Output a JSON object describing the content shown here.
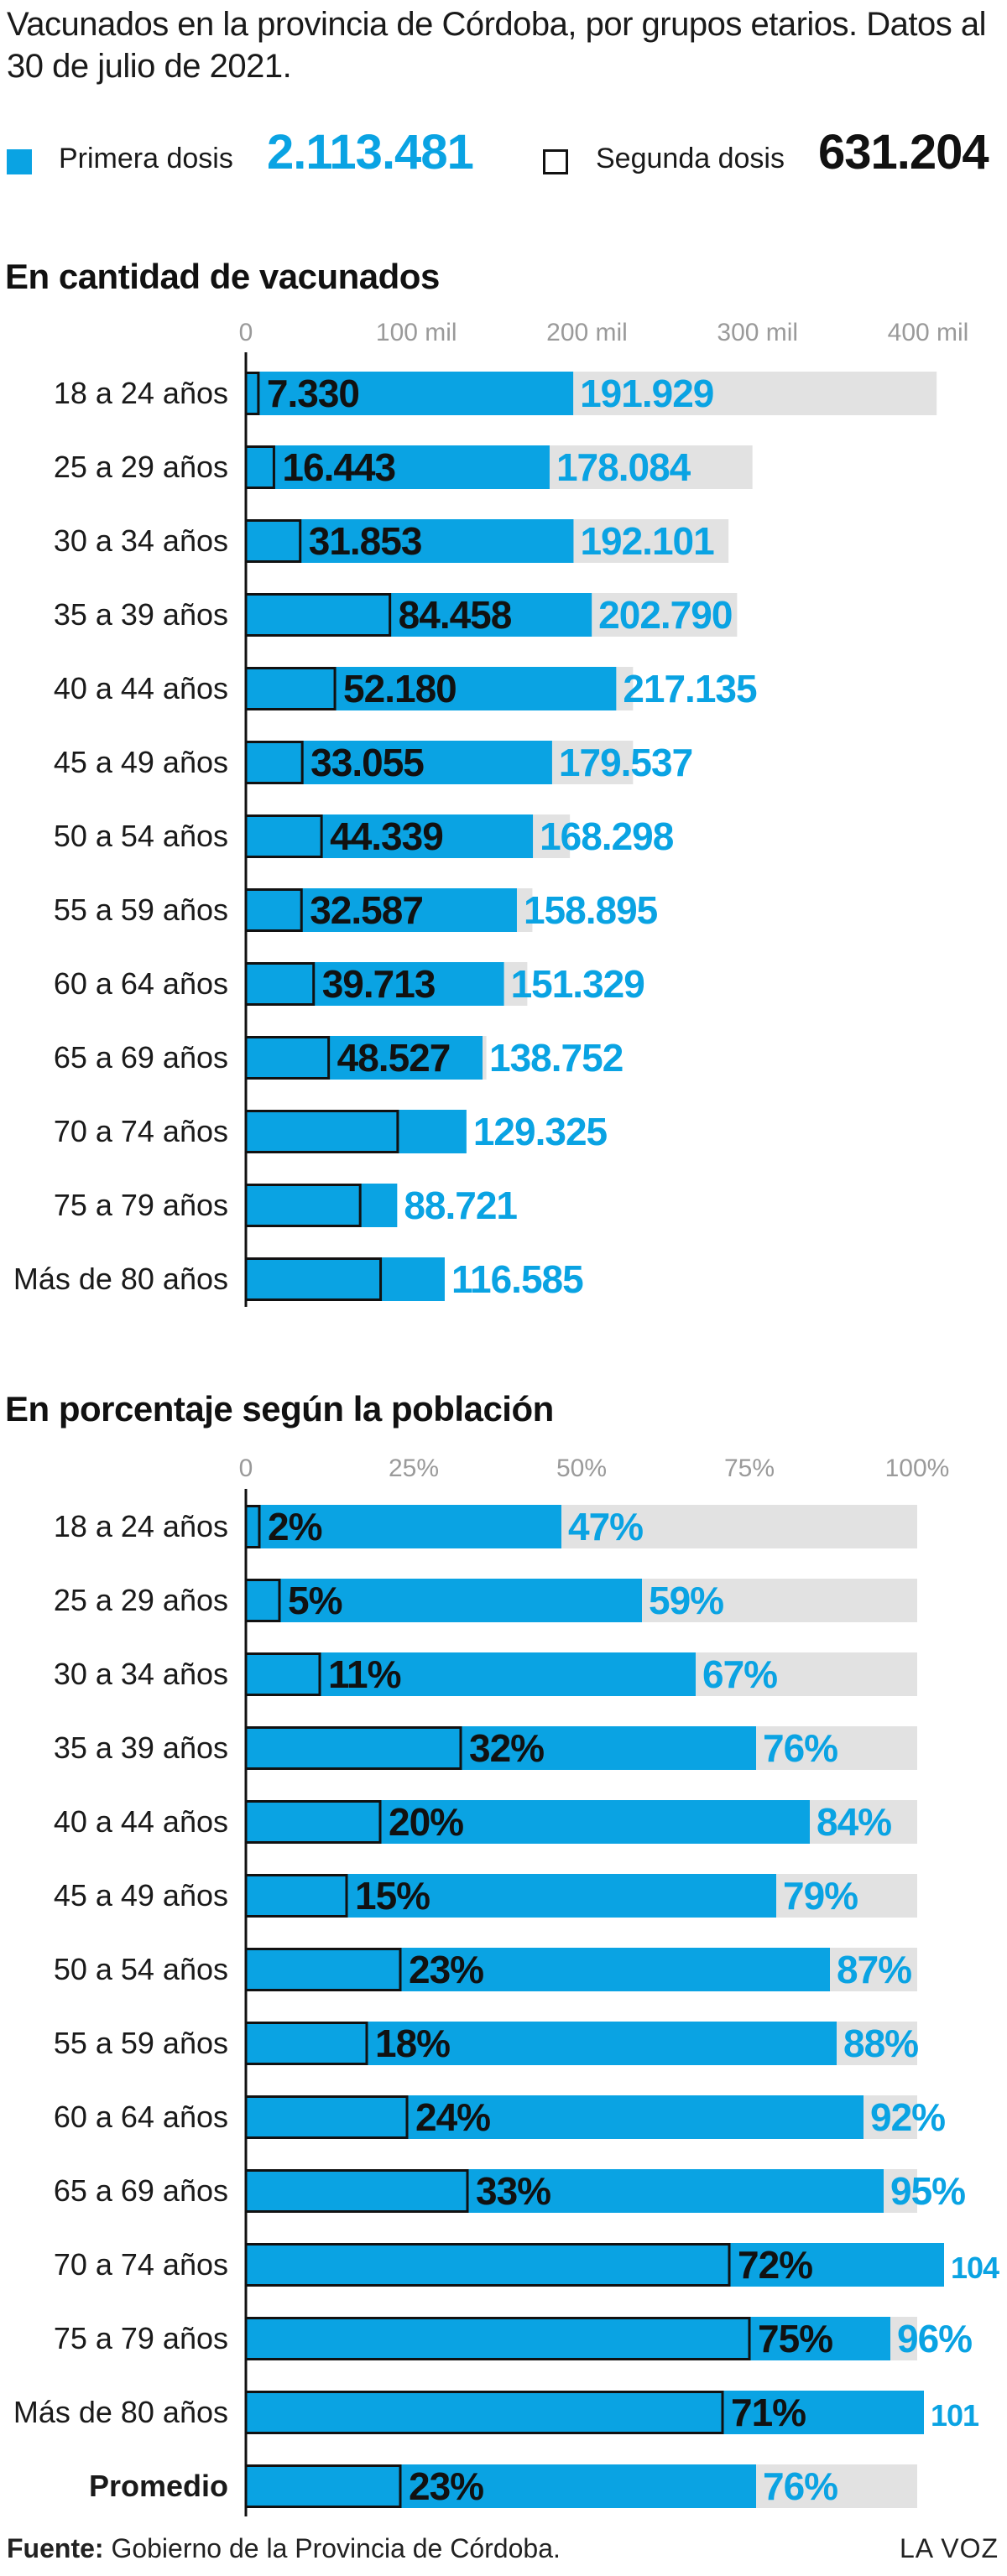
{
  "title": "Vacunados en la provincia de Córdoba, por grupos etarios. Datos al 30 de julio de 2021.",
  "legend": {
    "first": {
      "label": "Primera dosis",
      "value": "2.113.481"
    },
    "second": {
      "label": "Segunda dosis",
      "value": "631.204"
    }
  },
  "colors": {
    "first": "#0aa3e3",
    "background_bar": "#e2e2e2",
    "outline": "#111111",
    "text": "#111111"
  },
  "chart_data": [
    {
      "type": "bar",
      "orientation": "horizontal",
      "title": "En cantidad de vacunados",
      "xlim": [
        0,
        400000
      ],
      "ticks": [
        {
          "value": 0,
          "label": "0"
        },
        {
          "value": 100000,
          "label": "100 mil"
        },
        {
          "value": 200000,
          "label": "200 mil"
        },
        {
          "value": 300000,
          "label": "300 mil"
        },
        {
          "value": 400000,
          "label": "400 mil"
        }
      ],
      "categories": [
        "18 a 24 años",
        "25 a 29 años",
        "30 a 34 años",
        "35 a 39 años",
        "40 a 44 años",
        "45 a 49 años",
        "50 a 54 años",
        "55 a 59 años",
        "60 a 64 años",
        "65 a 69 años",
        "70 a 74 años",
        "75 a 79  años",
        "Más de 80 años"
      ],
      "background": [
        405000,
        297000,
        283000,
        288000,
        227000,
        227000,
        190000,
        168000,
        165000,
        141000,
        124000,
        88000,
        112000
      ],
      "series": [
        {
          "name": "Primera dosis",
          "values": [
            191929,
            178084,
            192101,
            202790,
            217135,
            179537,
            168298,
            158895,
            151329,
            138752,
            129325,
            88721,
            116585
          ],
          "labels": [
            "191.929",
            "178.084",
            "192.101",
            "202.790",
            "217.135",
            "179.537",
            "168.298",
            "158.895",
            "151.329",
            "138.752",
            "129.325",
            "88.721",
            "116.585"
          ]
        },
        {
          "name": "Segunda dosis",
          "values": [
            7330,
            16443,
            31853,
            84458,
            52180,
            33055,
            44339,
            32587,
            39713,
            48527,
            89000,
            67000,
            79000
          ],
          "labels": [
            "7.330",
            "16.443",
            "31.853",
            "84.458",
            "52.180",
            "33.055",
            "44.339",
            "32.587",
            "39.713",
            "48.527",
            "",
            "",
            ""
          ]
        }
      ]
    },
    {
      "type": "bar",
      "orientation": "horizontal",
      "title": "En porcentaje según la población",
      "xlim": [
        0,
        100
      ],
      "ticks": [
        {
          "value": 0,
          "label": "0"
        },
        {
          "value": 25,
          "label": "25%"
        },
        {
          "value": 50,
          "label": "50%"
        },
        {
          "value": 75,
          "label": "75%"
        },
        {
          "value": 100,
          "label": "100%"
        }
      ],
      "categories": [
        "18 a 24 años",
        "25 a 29 años",
        "30 a 34 años",
        "35 a 39 años",
        "40 a 44 años",
        "45 a 49 años",
        "50 a 54 años",
        "55 a 59 años",
        "60 a 64 años",
        "65 a 69 años",
        "70 a 74 años",
        "75 a 79  años",
        "Más de 80 años",
        "Promedio"
      ],
      "background": [
        100,
        100,
        100,
        100,
        100,
        100,
        100,
        100,
        100,
        100,
        100,
        100,
        100,
        100
      ],
      "series": [
        {
          "name": "Primera dosis",
          "values": [
            47,
            59,
            67,
            76,
            84,
            79,
            87,
            88,
            92,
            95,
            104,
            96,
            101,
            76
          ],
          "labels": [
            "47%",
            "59%",
            "67%",
            "76%",
            "84%",
            "79%",
            "87%",
            "88%",
            "92%",
            "95%",
            "104",
            "96%",
            "101",
            "76%"
          ]
        },
        {
          "name": "Segunda dosis",
          "values": [
            2,
            5,
            11,
            32,
            20,
            15,
            23,
            18,
            24,
            33,
            72,
            75,
            71,
            23
          ],
          "labels": [
            "2%",
            "5%",
            "11%",
            "32%",
            "20%",
            "15%",
            "23%",
            "18%",
            "24%",
            "33%",
            "72%",
            "75%",
            "71%",
            "23%"
          ]
        }
      ]
    }
  ],
  "footer": {
    "source_label": "Fuente:",
    "source_text": " Gobierno de la Provincia de Córdoba.",
    "brand": "LA VOZ"
  }
}
